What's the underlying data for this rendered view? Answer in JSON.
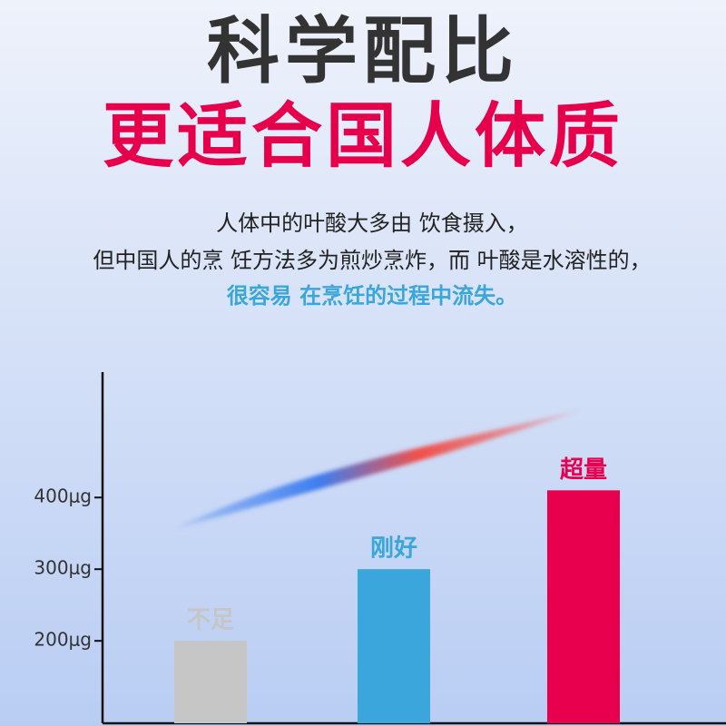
{
  "header": {
    "title": "科学配比",
    "subtitle": "更适合国人体质"
  },
  "description": {
    "lines": [
      "人体中的叶酸大多由 饮食摄入，",
      "但中国人的烹 饪方法多为煎炒烹炸，而 叶酸是水溶性的，",
      "很容易 在烹饪的过程中流失。"
    ]
  },
  "chart_data": {
    "type": "bar",
    "categories": [
      "不足",
      "刚好",
      "超量"
    ],
    "values": [
      200,
      300,
      410
    ],
    "colors": [
      "#c6c6c6",
      "#3aa6dc",
      "#e8004f"
    ],
    "ylim": [
      85,
      575
    ],
    "yticks": [
      {
        "value": 200,
        "label": "200μg"
      },
      {
        "value": 300,
        "label": "300μg"
      },
      {
        "value": 400,
        "label": "400μg"
      }
    ]
  }
}
